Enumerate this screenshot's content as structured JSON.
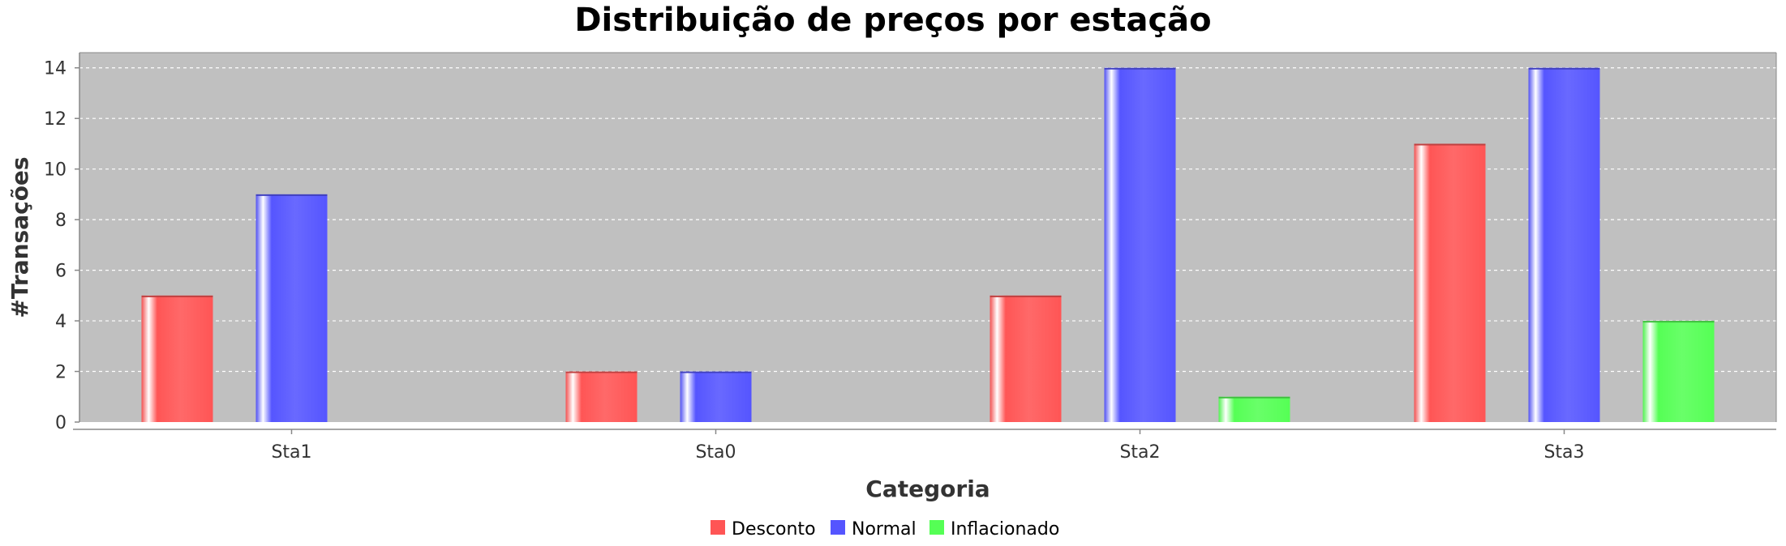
{
  "chart_data": {
    "type": "bar",
    "title": "Distribuição de preços por estação",
    "xlabel": "Categoria",
    "ylabel": "#Transações",
    "categories": [
      "Sta1",
      "Sta0",
      "Sta2",
      "Sta3"
    ],
    "series": [
      {
        "name": "Desconto",
        "color": "#ff5555",
        "values": [
          5,
          2,
          5,
          11
        ]
      },
      {
        "name": "Normal",
        "color": "#5555ff",
        "values": [
          9,
          2,
          14,
          14
        ]
      },
      {
        "name": "Inflacionado",
        "color": "#55ff55",
        "values": [
          0,
          0,
          1,
          4
        ]
      }
    ],
    "ylim": [
      0,
      14.6
    ],
    "yticks": [
      0,
      2,
      4,
      6,
      8,
      10,
      12,
      14
    ],
    "grid": true,
    "legend_position": "bottom",
    "plot_background": "#c0c0c0"
  }
}
